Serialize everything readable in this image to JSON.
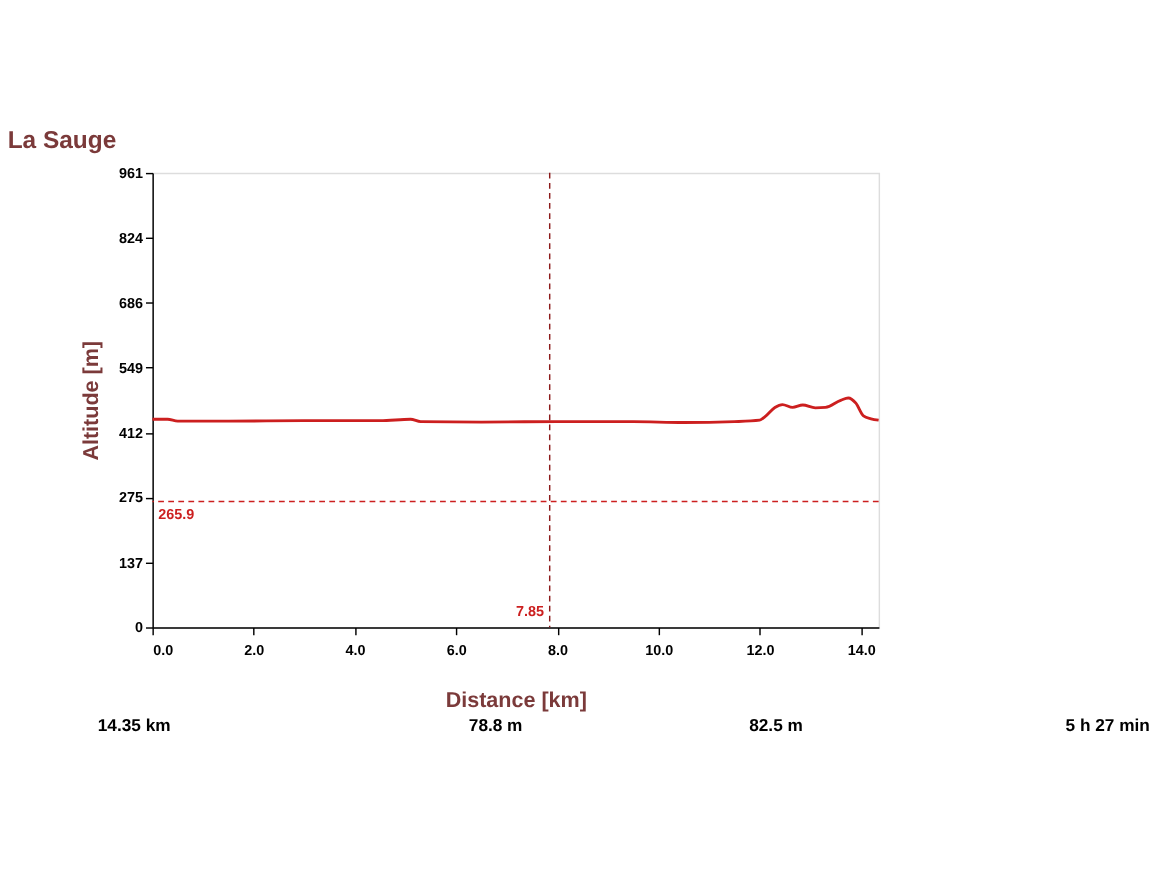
{
  "chart_data": {
    "type": "line",
    "title": "La Sauge",
    "xlabel": "Distance [km]",
    "ylabel": "Altitude [m]",
    "x": [
      0,
      0.3,
      0.5,
      1.5,
      3.0,
      4.5,
      5.1,
      5.3,
      6.5,
      8.0,
      9.5,
      10.5,
      11.5,
      12.0,
      12.1,
      12.3,
      12.45,
      12.65,
      12.85,
      13.1,
      13.3,
      13.6,
      13.75,
      13.9,
      14.05,
      14.2,
      14.35
    ],
    "series": [
      {
        "color": "#cc1f1f",
        "values": [
          440,
          440,
          436,
          436,
          437,
          437,
          440,
          435,
          434,
          435,
          435,
          433,
          435,
          438,
          445,
          465,
          471,
          465,
          470,
          464,
          465,
          480,
          485,
          474,
          447,
          441,
          438
        ]
      }
    ],
    "xlim": [
      0,
      14.35
    ],
    "ylim": [
      0,
      961
    ],
    "xticks": [
      {
        "value": 0,
        "label": "0.0"
      },
      {
        "value": 2,
        "label": "2.0"
      },
      {
        "value": 4,
        "label": "4.0"
      },
      {
        "value": 6,
        "label": "6.0"
      },
      {
        "value": 8,
        "label": "8.0"
      },
      {
        "value": 10,
        "label": "10.0"
      },
      {
        "value": 12,
        "label": "12.0"
      },
      {
        "value": 14,
        "label": "14.0"
      }
    ],
    "yticks": [
      0,
      137,
      275,
      412,
      549,
      686,
      824,
      961
    ],
    "ref_lines": [
      {
        "axis": "y",
        "value": 265.9,
        "label": "265.9",
        "color": "#cc1f1f",
        "line_style": "dashed"
      },
      {
        "axis": "x",
        "value": 7.85,
        "label": "7.85",
        "color": "#8b1a1a",
        "line_style": "dashed"
      }
    ],
    "annotations": [
      "14.35 km",
      "78.8 m",
      "82.5 m",
      "5 h 27 min"
    ],
    "grid": false,
    "legend": false,
    "marker": "none",
    "line_style": "solid"
  }
}
